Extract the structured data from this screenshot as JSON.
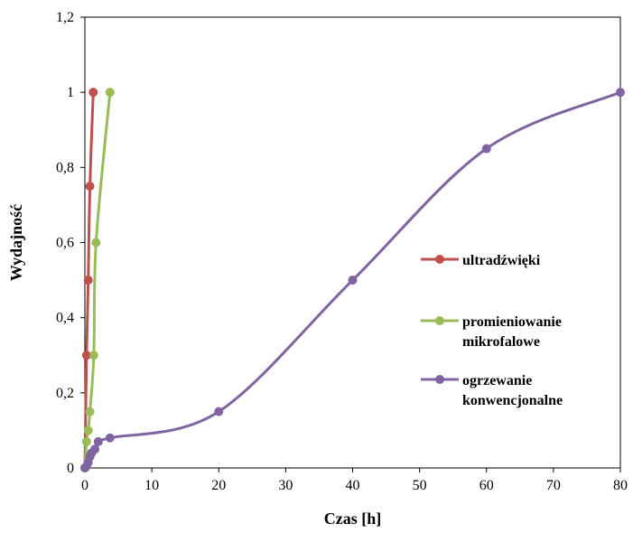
{
  "chart_data": {
    "type": "line",
    "xlabel": "Czas [h]",
    "ylabel": "Wydajność",
    "xlim": [
      0,
      80
    ],
    "ylim": [
      0,
      1.2
    ],
    "x_ticks": [
      0,
      10,
      20,
      30,
      40,
      50,
      60,
      70,
      80
    ],
    "y_ticks": [
      0,
      0.2,
      0.4,
      0.6,
      0.8,
      1.0,
      1.2
    ],
    "x_tick_labels": [
      "0",
      "10",
      "20",
      "30",
      "40",
      "50",
      "60",
      "70",
      "80"
    ],
    "y_tick_labels": [
      "0",
      "0,2",
      "0,4",
      "0,6",
      "0,8",
      "1",
      "1,2"
    ],
    "grid": false,
    "legend_position": "right-middle",
    "series": [
      {
        "name": "ultradźwięki",
        "color": "#C0504D",
        "x": [
          0,
          0.25,
          0.5,
          0.75,
          1.25
        ],
        "y": [
          0,
          0.3,
          0.5,
          0.75,
          1.0
        ]
      },
      {
        "name": "promieniowanie mikrofalowe",
        "color": "#9BBB59",
        "x": [
          0,
          0.25,
          0.5,
          0.75,
          1.33,
          1.67,
          3.75
        ],
        "y": [
          0,
          0.07,
          0.1,
          0.15,
          0.3,
          0.6,
          1.0
        ]
      },
      {
        "name": "ogrzewanie konwencjonalne",
        "color": "#8064A2",
        "x": [
          0,
          0.25,
          0.5,
          0.75,
          1.0,
          1.5,
          2.0,
          3.75,
          20,
          40,
          60,
          80
        ],
        "y": [
          0,
          0.005,
          0.015,
          0.03,
          0.04,
          0.05,
          0.07,
          0.08,
          0.15,
          0.5,
          0.85,
          1.0
        ]
      }
    ],
    "legend": [
      {
        "lines": [
          "ultradźwięki"
        ]
      },
      {
        "lines": [
          "promieniowanie",
          "mikrofalowe"
        ]
      },
      {
        "lines": [
          "ogrzewanie",
          "konwencjonalne"
        ]
      }
    ]
  }
}
